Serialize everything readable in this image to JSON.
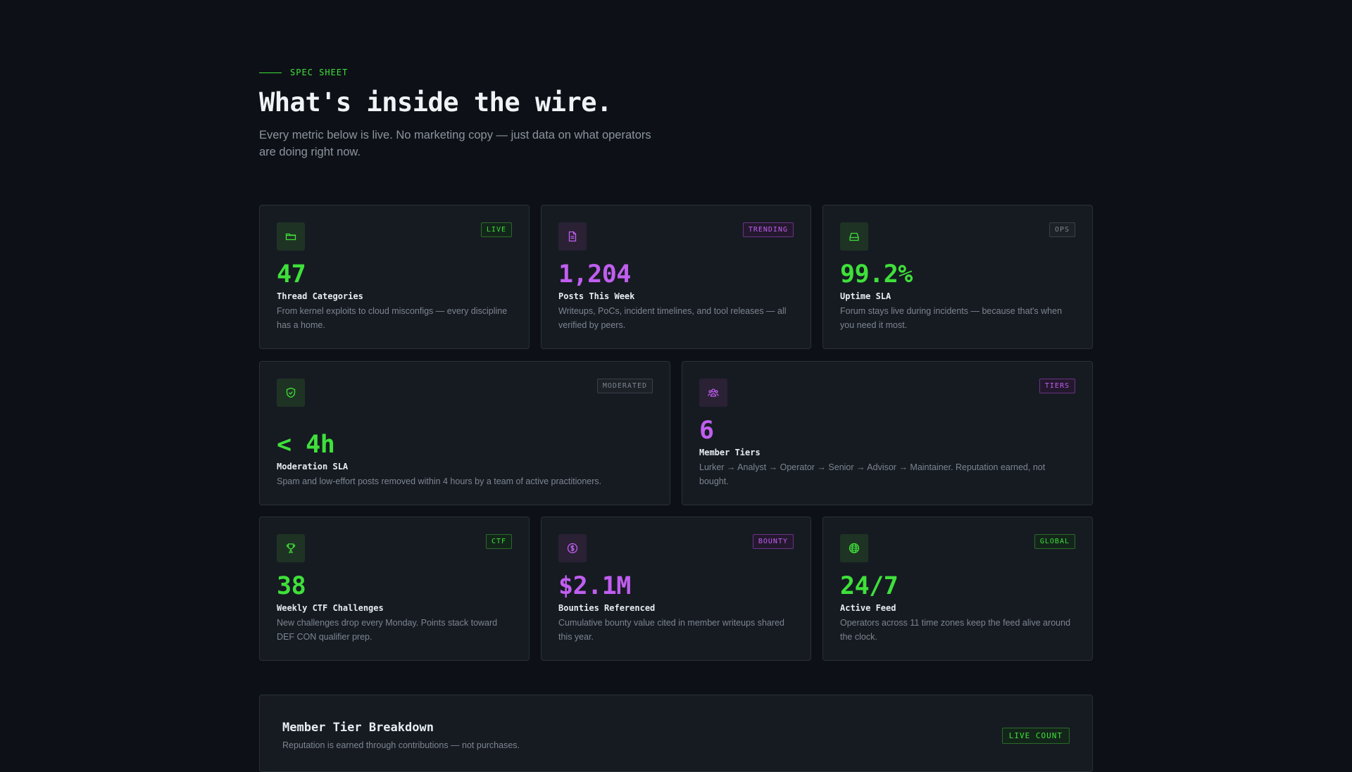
{
  "header": {
    "eyebrow": "SPEC SHEET",
    "title": "What's inside the wire.",
    "subtitle": "Every metric below is live. No marketing copy — just data on what operators are doing right now."
  },
  "cards": [
    {
      "icon": "folder-icon",
      "badge": "LIVE",
      "value": "47",
      "label": "Thread Categories",
      "desc": "From kernel exploits to cloud misconfigs — every discipline has a home."
    },
    {
      "icon": "document-icon",
      "badge": "TRENDING",
      "value": "1,204",
      "label": "Posts This Week",
      "desc": "Writeups, PoCs, incident timelines, and tool releases — all verified by peers."
    },
    {
      "icon": "server-icon",
      "badge": "OPS",
      "value": "99.2%",
      "label": "Uptime SLA",
      "desc": "Forum stays live during incidents — because that's when you need it most."
    },
    {
      "icon": "shield-check-icon",
      "badge": "MODERATED",
      "value": "< 4h",
      "label": "Moderation SLA",
      "desc": "Spam and low-effort posts removed within 4 hours by a team of active practitioners."
    },
    {
      "icon": "users-icon",
      "badge": "TIERS",
      "value": "6",
      "label": "Member Tiers",
      "desc": "Lurker → Analyst → Operator → Senior → Advisor → Maintainer. Reputation earned, not bought."
    },
    {
      "icon": "trophy-icon",
      "badge": "CTF",
      "value": "38",
      "label": "Weekly CTF Challenges",
      "desc": "New challenges drop every Monday. Points stack toward DEF CON qualifier prep."
    },
    {
      "icon": "dollar-icon",
      "badge": "BOUNTY",
      "value": "$2.1M",
      "label": "Bounties Referenced",
      "desc": "Cumulative bounty value cited in member writeups shared this year."
    },
    {
      "icon": "globe-icon",
      "badge": "GLOBAL",
      "value": "24/7",
      "label": "Active Feed",
      "desc": "Operators across 11 time zones keep the feed alive around the clock."
    }
  ],
  "tier_breakdown": {
    "title": "Member Tier Breakdown",
    "subtitle": "Reputation is earned through contributions — not purchases.",
    "badge": "LIVE COUNT"
  },
  "colors": {
    "background": "#0d1117",
    "card": "#161b22",
    "green_accent": "#3fe03a",
    "purple_accent": "#c15ef0"
  }
}
